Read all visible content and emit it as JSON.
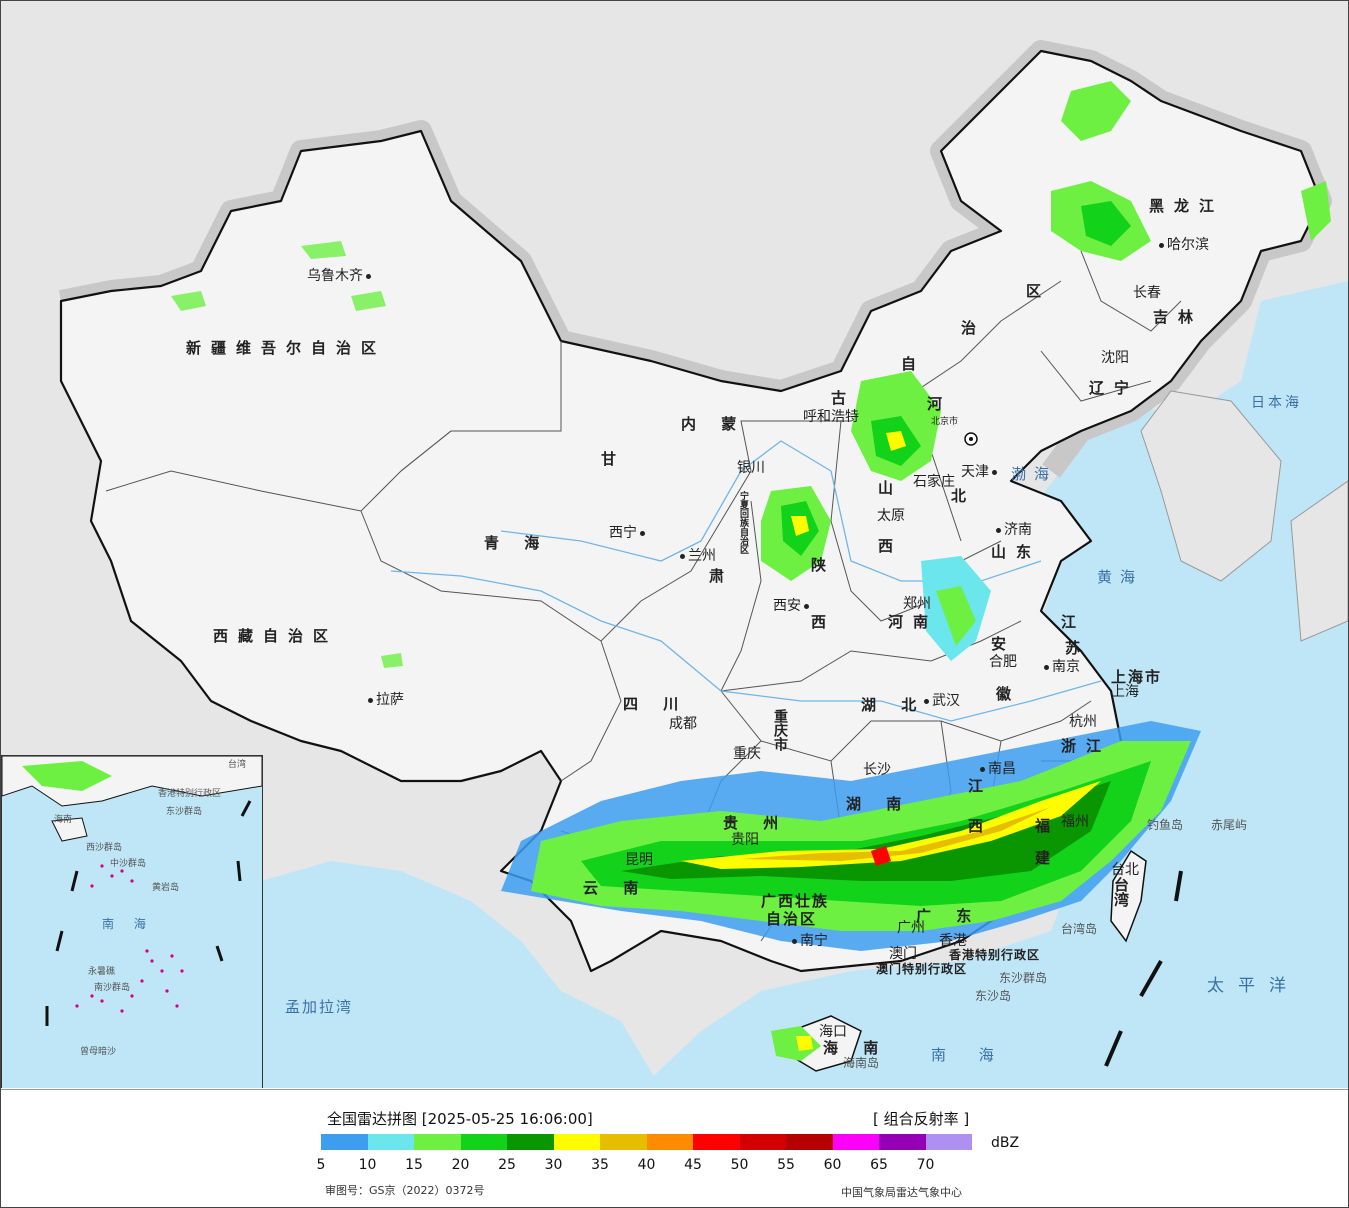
{
  "map": {
    "provinces": [
      {
        "id": "xinjiang",
        "text": "新疆维吾尔自治区"
      },
      {
        "id": "xizang",
        "text": "西藏自治区"
      },
      {
        "id": "qinghai",
        "text": "青  海"
      },
      {
        "id": "gansu",
        "text": "甘"
      },
      {
        "id": "gansu2",
        "text": "肃"
      },
      {
        "id": "neimeng",
        "text": "内  蒙"
      },
      {
        "id": "neimeng2",
        "text": "古"
      },
      {
        "id": "neimeng3",
        "text": "自"
      },
      {
        "id": "neimeng4",
        "text": "治"
      },
      {
        "id": "neimeng5",
        "text": "区"
      },
      {
        "id": "heilongjiang",
        "text": "黑龙江"
      },
      {
        "id": "jilin",
        "text": "吉林"
      },
      {
        "id": "liaoning",
        "text": "辽宁"
      },
      {
        "id": "hebei",
        "text": "河"
      },
      {
        "id": "hebei2",
        "text": "北"
      },
      {
        "id": "shanxi",
        "text": "山"
      },
      {
        "id": "shanxi2",
        "text": "西"
      },
      {
        "id": "shandong",
        "text": "山东"
      },
      {
        "id": "henan",
        "text": "河南"
      },
      {
        "id": "shaanxi",
        "text": "陕"
      },
      {
        "id": "shaanxi2",
        "text": "西"
      },
      {
        "id": "sichuan",
        "text": "四  川"
      },
      {
        "id": "chongqing",
        "text": "重庆市"
      },
      {
        "id": "hubei",
        "text": "湖  北"
      },
      {
        "id": "hunan",
        "text": "湖  南"
      },
      {
        "id": "jiangxi",
        "text": "江"
      },
      {
        "id": "jiangxi2",
        "text": "西"
      },
      {
        "id": "anhui",
        "text": "安"
      },
      {
        "id": "anhui2",
        "text": "徽"
      },
      {
        "id": "jiangsu",
        "text": "江"
      },
      {
        "id": "jiangsu2",
        "text": "苏"
      },
      {
        "id": "zhejiang",
        "text": "浙江"
      },
      {
        "id": "fujian",
        "text": "福"
      },
      {
        "id": "fujian2",
        "text": "建"
      },
      {
        "id": "guizhou",
        "text": "贵  州"
      },
      {
        "id": "yunnan",
        "text": "云    南"
      },
      {
        "id": "guangxi",
        "text": "广西壮族"
      },
      {
        "id": "guangxi2",
        "text": "自治区"
      },
      {
        "id": "guangdong",
        "text": "广  东"
      },
      {
        "id": "hainan",
        "text": "海  南"
      },
      {
        "id": "taiwan",
        "text": "台湾"
      },
      {
        "id": "shanghai",
        "text": "上海市"
      },
      {
        "id": "ningxia",
        "text": "宁夏回族自治区"
      },
      {
        "id": "hongkong",
        "text": "香港特别行政区"
      },
      {
        "id": "macau",
        "text": "澳门特别行政区"
      }
    ],
    "cities": [
      {
        "id": "urumqi",
        "text": "乌鲁木齐"
      },
      {
        "id": "lhasa",
        "text": "拉萨"
      },
      {
        "id": "xining",
        "text": "西宁"
      },
      {
        "id": "lanzhou",
        "text": "兰州"
      },
      {
        "id": "yinchuan",
        "text": "银川"
      },
      {
        "id": "huhehaote",
        "text": "呼和浩特"
      },
      {
        "id": "beijing",
        "text": "北京市"
      },
      {
        "id": "tianjin",
        "text": "天津"
      },
      {
        "id": "shijiazhuang",
        "text": "石家庄"
      },
      {
        "id": "taiyuan",
        "text": "太原"
      },
      {
        "id": "jinan",
        "text": "济南"
      },
      {
        "id": "zhengzhou",
        "text": "郑州"
      },
      {
        "id": "xian",
        "text": "西安"
      },
      {
        "id": "chengdu",
        "text": "成都"
      },
      {
        "id": "chongqingcity",
        "text": "重庆"
      },
      {
        "id": "wuhan",
        "text": "武汉"
      },
      {
        "id": "hefei",
        "text": "合肥"
      },
      {
        "id": "nanjing",
        "text": "南京"
      },
      {
        "id": "shanghaicity",
        "text": "上海"
      },
      {
        "id": "hangzhou",
        "text": "杭州"
      },
      {
        "id": "nanchang",
        "text": "南昌"
      },
      {
        "id": "changsha",
        "text": "长沙"
      },
      {
        "id": "guiyang",
        "text": "贵阳"
      },
      {
        "id": "kunming",
        "text": "昆明"
      },
      {
        "id": "nanning",
        "text": "南宁"
      },
      {
        "id": "guangzhou",
        "text": "广州"
      },
      {
        "id": "fuzhou",
        "text": "福州"
      },
      {
        "id": "taibei",
        "text": "台北"
      },
      {
        "id": "haikou",
        "text": "海口"
      },
      {
        "id": "shenyang",
        "text": "沈阳"
      },
      {
        "id": "changchun",
        "text": "长春"
      },
      {
        "id": "haerbin",
        "text": "哈尔滨"
      },
      {
        "id": "xianggang",
        "text": "香港"
      },
      {
        "id": "aomen",
        "text": "澳门"
      }
    ],
    "seas": [
      {
        "id": "bohai",
        "text": "渤海"
      },
      {
        "id": "huanghai",
        "text": "黄海"
      },
      {
        "id": "riben",
        "text": "日本海"
      },
      {
        "id": "taipingyang",
        "text": "太平洋"
      },
      {
        "id": "nanhai",
        "text": "南 海"
      },
      {
        "id": "mengjiala",
        "text": "孟加拉湾"
      }
    ],
    "islands": [
      {
        "id": "diaoyu",
        "text": "钓鱼岛"
      },
      {
        "id": "chiwei",
        "text": "赤尾屿"
      },
      {
        "id": "taiwandao",
        "text": "台湾岛"
      },
      {
        "id": "dongsha",
        "text": "东沙群岛"
      },
      {
        "id": "dongshadao",
        "text": "东沙岛"
      },
      {
        "id": "hainandao",
        "text": "海南岛"
      }
    ],
    "inset": {
      "labels": [
        {
          "id": "i_nanhai",
          "text": "南  海"
        },
        {
          "id": "i_xisha",
          "text": "西沙群岛"
        },
        {
          "id": "i_zhongsha",
          "text": "中沙群岛"
        },
        {
          "id": "i_huangyan",
          "text": "黄岩岛"
        },
        {
          "id": "i_nansha",
          "text": "南沙群岛"
        },
        {
          "id": "i_yongshu",
          "text": "永暑礁"
        },
        {
          "id": "i_zengmu",
          "text": "曾母暗沙"
        },
        {
          "id": "i_hk",
          "text": "香港特别行政区"
        },
        {
          "id": "i_taiwan",
          "text": "台湾"
        },
        {
          "id": "i_dongsha",
          "text": "东沙群岛"
        },
        {
          "id": "i_hainan",
          "text": "海南"
        }
      ]
    }
  },
  "legend": {
    "title": "全国雷达拼图 [2025-05-25 16:06:00]",
    "product": "[ 组合反射率 ]",
    "unit": "dBZ",
    "colors": [
      "#3d9ef0",
      "#6ae6ec",
      "#6ef043",
      "#13d21a",
      "#0a9600",
      "#fdfd00",
      "#e6be00",
      "#fe8c00",
      "#fe0000",
      "#d20000",
      "#b40000",
      "#fd00f9",
      "#9600b4",
      "#ad90f0"
    ],
    "ticks": [
      "5",
      "10",
      "15",
      "20",
      "25",
      "30",
      "35",
      "40",
      "45",
      "50",
      "55",
      "60",
      "65",
      "70"
    ],
    "approval": "审图号：GS京（2022）0372号",
    "agency": "中国气象局雷达气象中心"
  }
}
